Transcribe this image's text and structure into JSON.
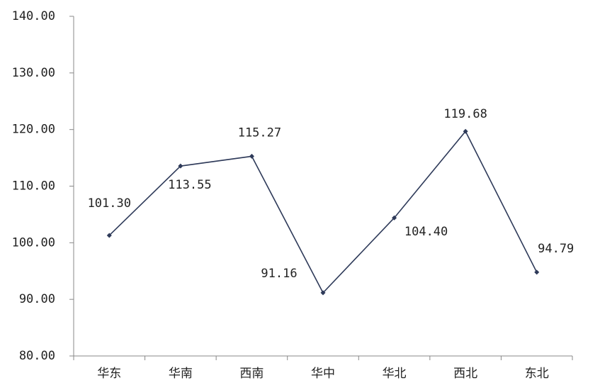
{
  "chart_data": {
    "type": "line",
    "categories": [
      "华东",
      "华南",
      "西南",
      "华中",
      "华北",
      "西北",
      "东北"
    ],
    "values": [
      101.3,
      113.55,
      115.27,
      91.16,
      104.4,
      119.68,
      94.79
    ],
    "value_labels": [
      "101.30",
      "113.55",
      "115.27",
      "91.16",
      "104.40",
      "119.68",
      "94.79"
    ],
    "color": "#2e3a59",
    "ylim": [
      80,
      140
    ],
    "yticks": [
      {
        "value": 80,
        "label": "80.00"
      },
      {
        "value": 90,
        "label": "90.00"
      },
      {
        "value": 100,
        "label": "100.00"
      },
      {
        "value": 110,
        "label": "110.00"
      },
      {
        "value": 120,
        "label": "120.00"
      },
      {
        "value": 130,
        "label": "130.00"
      },
      {
        "value": 140,
        "label": "140.00"
      }
    ]
  }
}
